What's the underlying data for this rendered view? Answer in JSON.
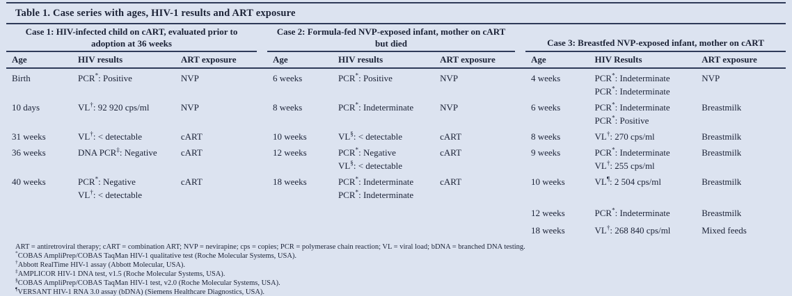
{
  "title": "Table 1. Case series with ages, HIV-1 results and ART exposure",
  "colors": {
    "background": "#dce3f0",
    "text": "#1b2236",
    "rule": "#2e3a58"
  },
  "cases": [
    {
      "header": "Case 1: HIV-infected child on cART, evaluated prior to adoption at 36 weeks",
      "col_age": "Age",
      "col_hiv": "HIV results",
      "col_art": "ART exposure",
      "rows": [
        {
          "age": "Birth",
          "art": "NVP",
          "results": [
            {
              "t": "PCR",
              "s": "*",
              "v": ": Positive"
            }
          ]
        },
        {
          "age": "10 days",
          "art": "NVP",
          "results": [
            {
              "t": "VL",
              "s": "†",
              "v": ": 92 920 cps/ml"
            }
          ]
        },
        {
          "age": "31 weeks",
          "art": "cART",
          "results": [
            {
              "t": "VL",
              "s": "†",
              "v": ": < detectable"
            }
          ]
        },
        {
          "age": "36 weeks",
          "art": "cART",
          "results": [
            {
              "t": "DNA PCR",
              "s": "‡",
              "v": ": Negative"
            }
          ]
        },
        {
          "age": "40 weeks",
          "art": "cART",
          "results": [
            {
              "t": "PCR",
              "s": "*",
              "v": ": Negative"
            },
            {
              "t": "VL",
              "s": "†",
              "v": ": < detectable"
            }
          ]
        }
      ]
    },
    {
      "header": "Case 2: Formula-fed NVP-exposed infant, mother on cART but died",
      "col_age": "Age",
      "col_hiv": "HIV results",
      "col_art": "ART exposure",
      "rows": [
        {
          "age": "6 weeks",
          "art": "NVP",
          "results": [
            {
              "t": "PCR",
              "s": "*",
              "v": ": Positive"
            }
          ]
        },
        {
          "age": "8 weeks",
          "art": "NVP",
          "results": [
            {
              "t": "PCR",
              "s": "*",
              "v": ": Indeterminate"
            }
          ]
        },
        {
          "age": "10 weeks",
          "art": "cART",
          "results": [
            {
              "t": "VL",
              "s": "§",
              "v": ": < detectable"
            }
          ]
        },
        {
          "age": "12 weeks",
          "art": "cART",
          "results": [
            {
              "t": "PCR",
              "s": "*",
              "v": ": Negative"
            },
            {
              "t": "VL",
              "s": "§",
              "v": ": < detectable"
            }
          ]
        },
        {
          "age": "18 weeks",
          "art": "cART",
          "results": [
            {
              "t": "PCR",
              "s": "*",
              "v": ": Indeterminate"
            },
            {
              "t": "PCR",
              "s": "*",
              "v": ": Indeterminate"
            }
          ]
        }
      ]
    },
    {
      "header": "Case 3: Breastfed NVP-exposed infant, mother on cART",
      "col_age": "Age",
      "col_hiv": "HIV Results",
      "col_art": "ART exposure",
      "rows": [
        {
          "age": "4 weeks",
          "art": "NVP",
          "results": [
            {
              "t": "PCR",
              "s": "*",
              "v": ": Indeterminate"
            },
            {
              "t": "PCR",
              "s": "*",
              "v": ": Indeterminate"
            }
          ]
        },
        {
          "age": "6 weeks",
          "art": "Breastmilk",
          "results": [
            {
              "t": "PCR",
              "s": "*",
              "v": ": Indeterminate"
            },
            {
              "t": "PCR",
              "s": "*",
              "v": ": Positive"
            }
          ]
        },
        {
          "age": "8 weeks",
          "art": "Breastmilk",
          "results": [
            {
              "t": "VL",
              "s": "†",
              "v": ": 270 cps/ml"
            }
          ]
        },
        {
          "age": "9 weeks",
          "art": "Breastmilk",
          "results": [
            {
              "t": "PCR",
              "s": "*",
              "v": ": Indeterminate"
            },
            {
              "t": "VL",
              "s": "†",
              "v": ": 255 cps/ml"
            }
          ]
        },
        {
          "age": "10 weeks",
          "art": "Breastmilk",
          "results": [
            {
              "t": "VL",
              "s": "¶",
              "v": ": 2 504 cps/ml"
            }
          ]
        },
        {
          "age": "12 weeks",
          "art": "Breastmilk",
          "results": [
            {
              "t": "PCR",
              "s": "*",
              "v": ": Indeterminate"
            }
          ]
        },
        {
          "age": "18 weeks",
          "art": "Mixed feeds",
          "results": [
            {
              "t": "VL",
              "s": "†",
              "v": ": 268 840 cps/ml"
            }
          ]
        }
      ]
    }
  ],
  "footnotes": {
    "abbreviations": "ART = antiretroviral therapy; cART = combination ART; NVP = nevirapine; cps = copies; PCR = polymerase chain reaction; VL = viral load; bDNA = branched DNA testing.",
    "notes": [
      {
        "symbol": "*",
        "text": "COBAS AmpliPrep/COBAS TaqMan HIV-1 qualitative test (Roche Molecular Systems, USA)."
      },
      {
        "symbol": "†",
        "text": "Abbott RealTime HIV-1 assay (Abbott Molecular, USA)."
      },
      {
        "symbol": "‡",
        "text": "AMPLICOR HIV-1 DNA test, v1.5 (Roche Molecular Systems, USA)."
      },
      {
        "symbol": "§",
        "text": "COBAS AmpliPrep/COBAS TaqMan HIV-1 test, v2.0 (Roche Molecular Systems, USA)."
      },
      {
        "symbol": "¶",
        "text": "VERSANT HIV-1 RNA 3.0 assay (bDNA) (Siemens Healthcare Diagnostics, USA)."
      }
    ]
  }
}
